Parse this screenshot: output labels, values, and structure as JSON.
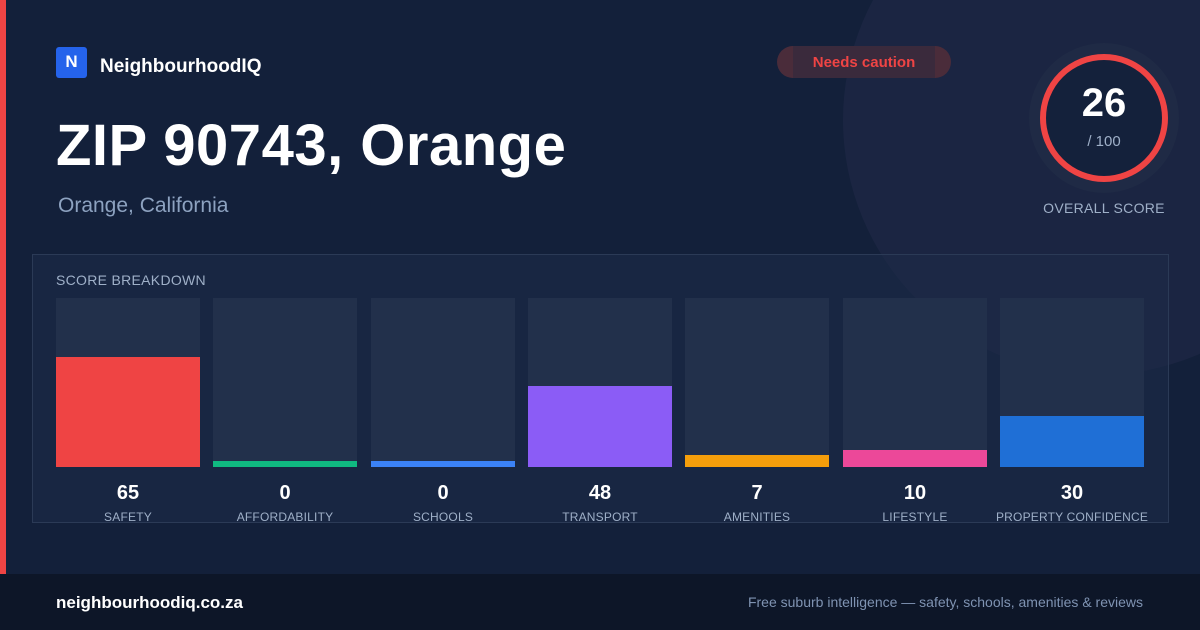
{
  "brand": {
    "logo_letter": "N",
    "name": "NeighbourhoodIQ"
  },
  "badge": {
    "label": "Needs caution",
    "color": "#ef4444"
  },
  "location": {
    "title": "ZIP 90743, Orange",
    "subtitle": "Orange, California"
  },
  "overall": {
    "score": "26",
    "max_label": "/ 100",
    "label": "OVERALL SCORE",
    "fraction": 0.26,
    "ring_color": "#ef4444"
  },
  "breakdown": {
    "title": "SCORE BREAKDOWN",
    "items": [
      {
        "label": "SAFETY",
        "value": 65,
        "color": "#ef4444"
      },
      {
        "label": "AFFORDABILITY",
        "value": 0,
        "color": "#10b981"
      },
      {
        "label": "SCHOOLS",
        "value": 0,
        "color": "#3b82f6"
      },
      {
        "label": "TRANSPORT",
        "value": 48,
        "color": "#8b5cf6"
      },
      {
        "label": "AMENITIES",
        "value": 7,
        "color": "#f59e0b"
      },
      {
        "label": "LIFESTYLE",
        "value": 10,
        "color": "#ec4899"
      },
      {
        "label": "PROPERTY CONFIDENCE",
        "value": 30,
        "color": "#1f6fd6"
      }
    ]
  },
  "footer": {
    "domain": "neighbourhoodiq.co.za",
    "tagline": "Free suburb intelligence — safety, schools, amenities & reviews"
  }
}
